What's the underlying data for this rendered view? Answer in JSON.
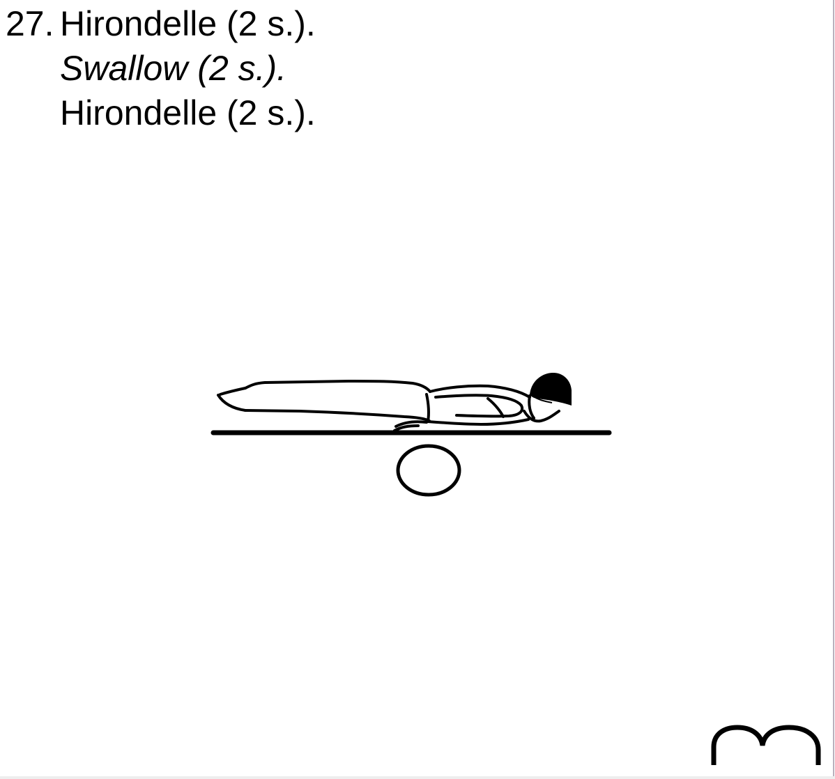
{
  "exercise": {
    "number": "27.",
    "title_fr": "Hirondelle (2 s.).",
    "title_en": "Swallow (2 s.).",
    "title_repeat": "Hirondelle (2 s.)."
  },
  "figure": {
    "icon": "swallow-exercise-illustration"
  },
  "footer": {
    "icon": "arch-mark-icon"
  }
}
